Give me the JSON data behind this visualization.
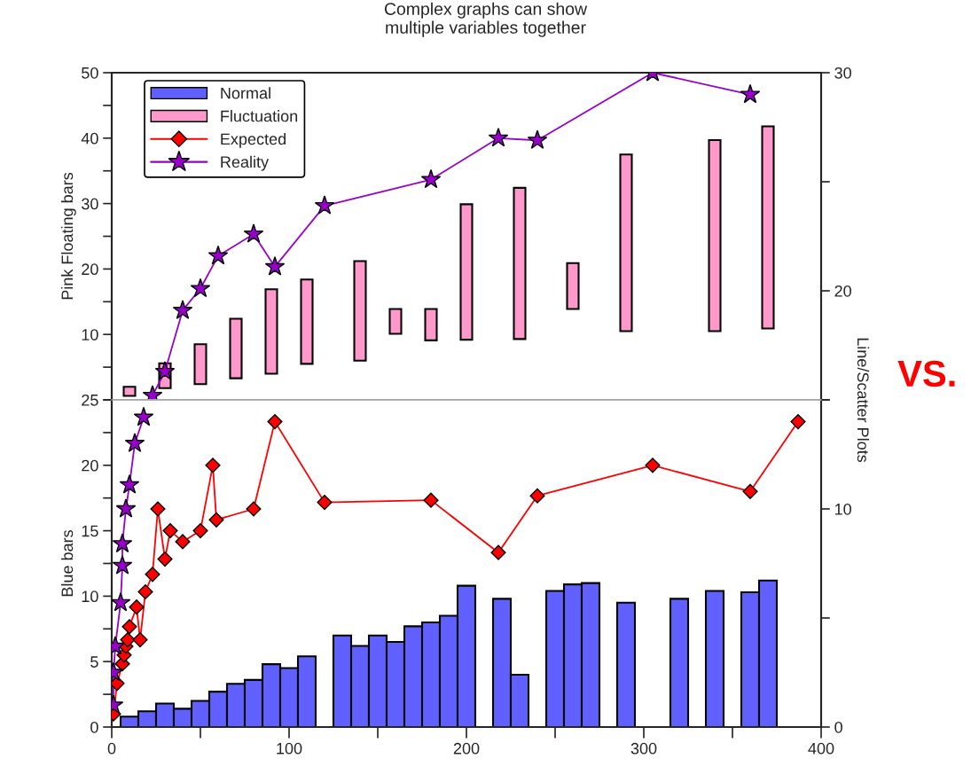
{
  "chart_data": [
    {
      "type": "bar",
      "title": "Complex graphs can show\nmultiple variables together",
      "ylabel": "Pink Floating bars",
      "tick_labels": "y",
      "xlim": [
        0,
        400
      ],
      "ylim": [
        0,
        50
      ],
      "yticks": [
        {
          "value": 0,
          "label": null
        },
        {
          "value": 5,
          "label": null
        },
        10,
        {
          "value": 15,
          "label": null
        },
        20,
        {
          "value": 25,
          "label": null
        },
        30,
        {
          "value": 35,
          "label": null
        },
        40,
        {
          "value": 45,
          "label": null
        },
        50
      ],
      "y2lim": [
        15,
        30
      ],
      "y2ticks": [
        {
          "value": 15,
          "label": null
        },
        20,
        {
          "value": 25,
          "label": null
        },
        30
      ],
      "legend": "top left",
      "annotations": [
        "VS."
      ],
      "series": [
        {
          "name": "Fluctuation",
          "color": "#ff99cc",
          "x": [
            10,
            30,
            50,
            70,
            90,
            110,
            140,
            160,
            180,
            200,
            230,
            260,
            290,
            340,
            370
          ],
          "base": [
            0.6,
            1.8,
            2.4,
            3.3,
            4.0,
            5.5,
            6.0,
            10.1,
            9.1,
            9.2,
            9.3,
            13.9,
            10.5,
            10.5,
            10.9
          ],
          "values": [
            1.4,
            3.8,
            6.1,
            9.1,
            12.9,
            12.9,
            15.2,
            3.8,
            4.8,
            20.7,
            23.1,
            7.0,
            27.0,
            29.2,
            30.9
          ]
        },
        {
          "name": "Reality",
          "type": "line",
          "axis": "y2",
          "color": "#9900cc",
          "marker": "star",
          "x": [
            23,
            30,
            40,
            50,
            60,
            80,
            92,
            120,
            180,
            218,
            240,
            305,
            360
          ],
          "values": [
            15.2,
            16.3,
            19.1,
            20.1,
            21.6,
            22.6,
            21.1,
            23.9,
            25.1,
            27.0,
            26.9,
            30.0,
            29.0
          ]
        }
      ]
    },
    {
      "type": "bar",
      "ylabel": "Blue bars",
      "y2label": "Line/Scatter Plots",
      "xlim": [
        0,
        400
      ],
      "legend": "top left",
      "xticks": [
        0,
        {
          "value": 50,
          "label": null
        },
        100,
        {
          "value": 150,
          "label": null
        },
        200,
        {
          "value": 250,
          "label": null
        },
        300,
        {
          "value": 350,
          "label": null
        },
        400
      ],
      "ylim": [
        0,
        25
      ],
      "yticks": [
        0,
        {
          "value": 2.5,
          "label": null
        },
        5,
        {
          "value": 7.5,
          "label": null
        },
        10,
        {
          "value": 12.5,
          "label": null
        },
        15,
        {
          "value": 17.5,
          "label": null
        },
        20,
        {
          "value": 22.5,
          "label": null
        },
        25
      ],
      "y2lim": [
        0,
        15
      ],
      "y2ticks": [
        0,
        {
          "value": 5,
          "label": null
        },
        10,
        {
          "value": 15,
          "label": null
        }
      ],
      "series": [
        {
          "name": "Normal",
          "color": "#6060ff",
          "x": [
            10,
            20,
            30,
            40,
            50,
            60,
            70,
            80,
            90,
            100,
            110,
            130,
            140,
            150,
            160,
            170,
            180,
            190,
            200,
            220,
            230,
            250,
            260,
            270,
            290,
            320,
            340,
            360,
            370
          ],
          "values": [
            0.8,
            1.2,
            1.8,
            1.4,
            2.0,
            2.7,
            3.3,
            3.6,
            4.8,
            4.5,
            5.4,
            7.0,
            6.2,
            7.0,
            6.5,
            7.7,
            8.0,
            8.5,
            10.8,
            9.8,
            4.0,
            10.4,
            10.9,
            11.0,
            9.5,
            9.8,
            10.4,
            10.3,
            11.2
          ]
        },
        {
          "name": "Expected",
          "type": "line",
          "axis": "y2",
          "color": "#ff0000",
          "marker": "diamond",
          "x": [
            1,
            3,
            6,
            7,
            8,
            9,
            10,
            14,
            16,
            19,
            23,
            26,
            30,
            33,
            40,
            50,
            57,
            59,
            80,
            92,
            120,
            180,
            218,
            240,
            305,
            360,
            387
          ],
          "values": [
            0.6,
            2.0,
            2.9,
            3.3,
            3.7,
            4.0,
            4.6,
            5.5,
            4.0,
            6.2,
            7.0,
            10.0,
            7.7,
            9.0,
            8.5,
            9.0,
            12.0,
            9.5,
            10.0,
            14.0,
            10.3,
            10.4,
            8.0,
            10.6,
            12.0,
            10.8,
            14.0
          ]
        },
        {
          "name": "Reality",
          "type": "line",
          "axis": "y2",
          "color": "#9900cc",
          "marker": "star",
          "x": [
            1,
            1,
            2,
            5,
            6,
            6,
            8,
            10,
            13,
            18
          ],
          "values": [
            1.0,
            2.5,
            3.7,
            5.7,
            7.4,
            8.4,
            10.0,
            11.1,
            13.0,
            14.2
          ]
        }
      ]
    }
  ]
}
